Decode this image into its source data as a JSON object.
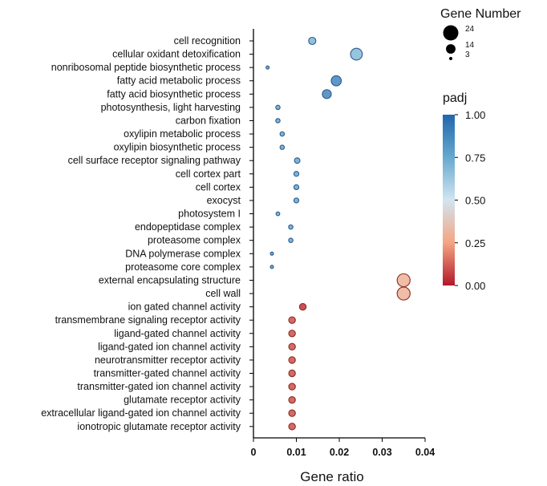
{
  "chart_data": {
    "type": "scatter",
    "xlabel": "Gene ratio",
    "ylabel": "",
    "xlim": [
      0,
      0.04
    ],
    "x_ticks": [
      "0",
      "0.01",
      "0.02",
      "0.03",
      "0.04"
    ],
    "grid": false,
    "points": [
      {
        "term": "cell recognition",
        "gene_ratio": 0.0137,
        "gene_number": 10,
        "padj": 0.7
      },
      {
        "term": "cellular oxidant detoxification",
        "gene_ratio": 0.024,
        "gene_number": 18,
        "padj": 0.68
      },
      {
        "term": "nonribosomal peptide biosynthetic process",
        "gene_ratio": 0.0033,
        "gene_number": 3,
        "padj": 0.8
      },
      {
        "term": "fatty acid metabolic process",
        "gene_ratio": 0.0193,
        "gene_number": 15,
        "padj": 0.88
      },
      {
        "term": "fatty acid biosynthetic process",
        "gene_ratio": 0.0171,
        "gene_number": 13,
        "padj": 0.88
      },
      {
        "term": "photosynthesis, light harvesting",
        "gene_ratio": 0.0057,
        "gene_number": 5,
        "padj": 0.75
      },
      {
        "term": "carbon fixation",
        "gene_ratio": 0.0057,
        "gene_number": 5,
        "padj": 0.75
      },
      {
        "term": "oxylipin metabolic process",
        "gene_ratio": 0.0067,
        "gene_number": 5,
        "padj": 0.75
      },
      {
        "term": "oxylipin biosynthetic process",
        "gene_ratio": 0.0067,
        "gene_number": 5,
        "padj": 0.75
      },
      {
        "term": "cell surface receptor signaling pathway",
        "gene_ratio": 0.0102,
        "gene_number": 7,
        "padj": 0.75
      },
      {
        "term": "cell cortex part",
        "gene_ratio": 0.01,
        "gene_number": 6,
        "padj": 0.75
      },
      {
        "term": "cell cortex",
        "gene_ratio": 0.01,
        "gene_number": 6,
        "padj": 0.75
      },
      {
        "term": "exocyst",
        "gene_ratio": 0.01,
        "gene_number": 6,
        "padj": 0.75
      },
      {
        "term": "photosystem I",
        "gene_ratio": 0.0057,
        "gene_number": 4,
        "padj": 0.75
      },
      {
        "term": "endopeptidase complex",
        "gene_ratio": 0.0087,
        "gene_number": 5,
        "padj": 0.75
      },
      {
        "term": "proteasome complex",
        "gene_ratio": 0.0087,
        "gene_number": 5,
        "padj": 0.75
      },
      {
        "term": "DNA polymerase complex",
        "gene_ratio": 0.0043,
        "gene_number": 3,
        "padj": 0.8
      },
      {
        "term": "proteasome core complex",
        "gene_ratio": 0.0043,
        "gene_number": 3,
        "padj": 0.8
      },
      {
        "term": "external encapsulating structure",
        "gene_ratio": 0.035,
        "gene_number": 20,
        "padj": 0.3
      },
      {
        "term": "cell wall",
        "gene_ratio": 0.035,
        "gene_number": 20,
        "padj": 0.3
      },
      {
        "term": "ion  gated channel activity",
        "gene_ratio": 0.0115,
        "gene_number": 9,
        "padj": 0.05
      },
      {
        "term": "transmembrane signaling receptor activity",
        "gene_ratio": 0.009,
        "gene_number": 9,
        "padj": 0.1
      },
      {
        "term": "ligand-gated channel activity",
        "gene_ratio": 0.009,
        "gene_number": 9,
        "padj": 0.1
      },
      {
        "term": "ligand-gated ion channel activity",
        "gene_ratio": 0.009,
        "gene_number": 9,
        "padj": 0.1
      },
      {
        "term": "neurotransmitter receptor activity",
        "gene_ratio": 0.009,
        "gene_number": 9,
        "padj": 0.1
      },
      {
        "term": "transmitter-gated channel activity",
        "gene_ratio": 0.009,
        "gene_number": 9,
        "padj": 0.1
      },
      {
        "term": "transmitter-gated ion channel activity",
        "gene_ratio": 0.009,
        "gene_number": 9,
        "padj": 0.1
      },
      {
        "term": "glutamate receptor activity",
        "gene_ratio": 0.009,
        "gene_number": 9,
        "padj": 0.1
      },
      {
        "term": "extracellular ligand-gated ion channel activity",
        "gene_ratio": 0.009,
        "gene_number": 9,
        "padj": 0.1
      },
      {
        "term": "ionotropic glutamate receptor activity",
        "gene_ratio": 0.009,
        "gene_number": 9,
        "padj": 0.1
      }
    ],
    "size_legend": {
      "title": "Gene Number",
      "entries": [
        {
          "label": "24",
          "value": 24
        },
        {
          "label": "14",
          "value": 14
        },
        {
          "label": "3",
          "value": 3
        }
      ]
    },
    "color_legend": {
      "title": "padj",
      "ticks": [
        "1.00",
        "0.75",
        "0.50",
        "0.25",
        "0.00"
      ],
      "tick_values": [
        1.0,
        0.75,
        0.5,
        0.25,
        0.0
      ],
      "colors": [
        "#2166ac",
        "#67a9cf",
        "#d1e5f0",
        "#f4a582",
        "#b2182b"
      ]
    },
    "marker_edge_colors": {
      "blue": "#2b5a8c",
      "red": "#8b2b1e"
    }
  }
}
